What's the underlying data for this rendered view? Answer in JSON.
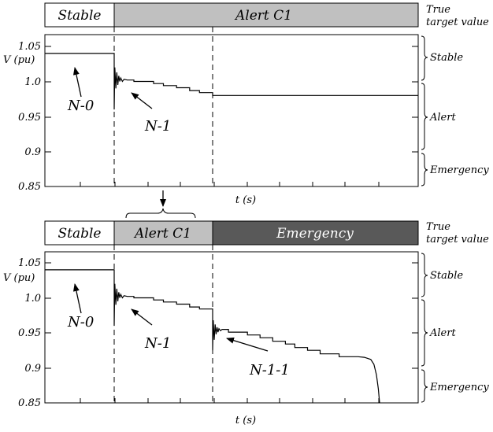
{
  "chart_data": [
    {
      "type": "line",
      "status_bar": [
        {
          "label": "Stable",
          "fill": "#ffffff",
          "text_color": "#000000"
        },
        {
          "label": "Alert C1",
          "fill": "#c0c0c0",
          "text_color": "#000000"
        }
      ],
      "status_bar_side_label": [
        "True",
        "target value"
      ],
      "ylabel": "V (pu)",
      "xlabel": "t (s)",
      "ylim": [
        0.85,
        1.07
      ],
      "yticks": [
        "1.05",
        "1.0",
        "0.95",
        "0.9",
        "0.85"
      ],
      "ytick_values": [
        1.05,
        1.0,
        0.95,
        0.9,
        0.85
      ],
      "contingency_times": [
        2.0,
        5.0
      ],
      "xlim": [
        0,
        11.5
      ],
      "series": [
        {
          "points": [
            [
              0,
              1.04
            ],
            [
              2.0,
              1.04
            ],
            [
              2.0,
              0.96
            ],
            [
              2.02,
              1.02
            ],
            [
              2.05,
              0.99
            ],
            [
              2.08,
              1.013
            ],
            [
              2.11,
              0.995
            ],
            [
              2.14,
              1.008
            ],
            [
              2.17,
              1.0
            ],
            [
              2.2,
              1.005
            ],
            [
              2.25,
              1.0
            ],
            [
              2.3,
              1.003
            ],
            [
              2.4,
              1.002
            ],
            [
              2.6,
              1.002
            ],
            [
              2.6,
              1.0
            ],
            [
              3.2,
              1.0
            ],
            [
              3.2,
              0.997
            ],
            [
              3.5,
              0.997
            ],
            [
              3.5,
              0.994
            ],
            [
              3.9,
              0.994
            ],
            [
              3.9,
              0.991
            ],
            [
              4.3,
              0.991
            ],
            [
              4.3,
              0.987
            ],
            [
              4.6,
              0.987
            ],
            [
              4.6,
              0.984
            ],
            [
              5.0,
              0.984
            ],
            [
              5.0,
              0.98
            ],
            [
              11.5,
              0.98
            ]
          ]
        }
      ],
      "zone_labels": [
        "Stable",
        "Alert",
        "Emergency"
      ],
      "zone_bounds": [
        [
          1.07,
          1.0
        ],
        [
          1.0,
          0.9
        ],
        [
          0.9,
          0.85
        ]
      ],
      "annotations": [
        "N-0",
        "N-1"
      ]
    },
    {
      "type": "line",
      "status_bar": [
        {
          "label": "Stable",
          "fill": "#ffffff",
          "text_color": "#000000"
        },
        {
          "label": "Alert C1",
          "fill": "#c0c0c0",
          "text_color": "#000000"
        },
        {
          "label": "Emergency",
          "fill": "#595959",
          "text_color": "#ffffff"
        }
      ],
      "status_bar_side_label": [
        "True",
        "target value"
      ],
      "ylabel": "V (pu)",
      "xlabel": "t (s)",
      "ylim": [
        0.85,
        1.07
      ],
      "yticks": [
        "1.05",
        "1.0",
        "0.95",
        "0.9",
        "0.85"
      ],
      "ytick_values": [
        1.05,
        1.0,
        0.95,
        0.9,
        0.85
      ],
      "contingency_times": [
        2.0,
        5.0
      ],
      "xlim": [
        0,
        11.5
      ],
      "series": [
        {
          "points": [
            [
              0,
              1.04
            ],
            [
              2.0,
              1.04
            ],
            [
              2.0,
              0.96
            ],
            [
              2.02,
              1.02
            ],
            [
              2.05,
              0.99
            ],
            [
              2.08,
              1.013
            ],
            [
              2.11,
              0.995
            ],
            [
              2.14,
              1.008
            ],
            [
              2.17,
              1.0
            ],
            [
              2.2,
              1.005
            ],
            [
              2.25,
              1.0
            ],
            [
              2.3,
              1.003
            ],
            [
              2.4,
              1.002
            ],
            [
              2.6,
              1.002
            ],
            [
              2.6,
              1.0
            ],
            [
              3.2,
              1.0
            ],
            [
              3.2,
              0.997
            ],
            [
              3.5,
              0.997
            ],
            [
              3.5,
              0.994
            ],
            [
              3.9,
              0.994
            ],
            [
              3.9,
              0.991
            ],
            [
              4.3,
              0.991
            ],
            [
              4.3,
              0.987
            ],
            [
              4.6,
              0.987
            ],
            [
              4.6,
              0.984
            ],
            [
              5.0,
              0.984
            ],
            [
              5.0,
              0.925
            ],
            [
              5.02,
              0.968
            ],
            [
              5.05,
              0.94
            ],
            [
              5.08,
              0.962
            ],
            [
              5.11,
              0.948
            ],
            [
              5.14,
              0.958
            ],
            [
              5.17,
              0.951
            ],
            [
              5.2,
              0.956
            ],
            [
              5.25,
              0.953
            ],
            [
              5.3,
              0.955
            ],
            [
              5.5,
              0.955
            ],
            [
              5.5,
              0.951
            ],
            [
              6.1,
              0.951
            ],
            [
              6.1,
              0.947
            ],
            [
              6.5,
              0.947
            ],
            [
              6.5,
              0.943
            ],
            [
              6.9,
              0.943
            ],
            [
              6.9,
              0.938
            ],
            [
              7.3,
              0.938
            ],
            [
              7.3,
              0.934
            ],
            [
              7.6,
              0.934
            ],
            [
              7.6,
              0.929
            ],
            [
              8.0,
              0.929
            ],
            [
              8.0,
              0.925
            ],
            [
              8.4,
              0.925
            ],
            [
              8.4,
              0.92
            ],
            [
              9.0,
              0.92
            ],
            [
              9.0,
              0.916
            ],
            [
              9.6,
              0.916
            ],
            [
              9.8,
              0.915
            ],
            [
              10.0,
              0.912
            ],
            [
              10.1,
              0.905
            ],
            [
              10.18,
              0.89
            ],
            [
              10.24,
              0.87
            ],
            [
              10.28,
              0.85
            ]
          ]
        }
      ],
      "zone_labels": [
        "Stable",
        "Alert",
        "Emergency"
      ],
      "zone_bounds": [
        [
          1.07,
          1.0
        ],
        [
          1.0,
          0.9
        ],
        [
          0.9,
          0.85
        ]
      ],
      "annotations": [
        "N-0",
        "N-1",
        "N-1-1"
      ]
    }
  ]
}
